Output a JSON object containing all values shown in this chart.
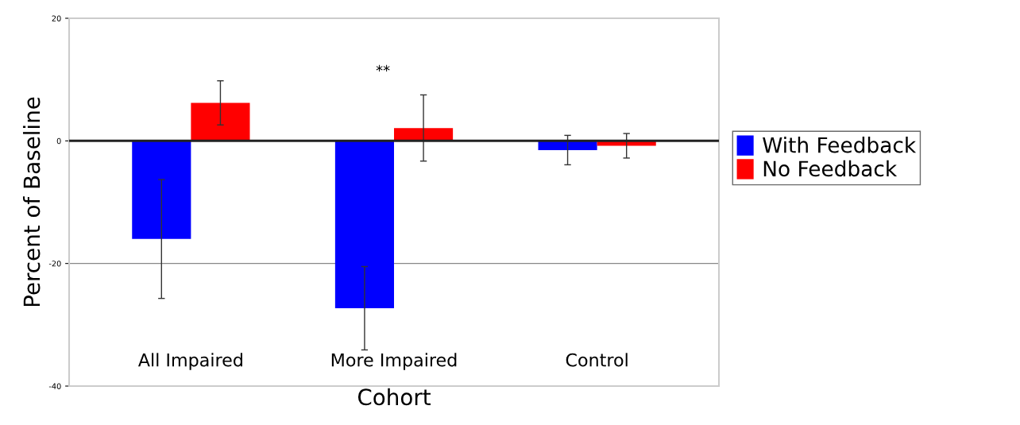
{
  "chart_data": {
    "type": "bar",
    "xlabel": "Cohort",
    "ylabel": "Percent of Baseline",
    "categories": [
      "All Impaired",
      "More Impaired",
      "Control"
    ],
    "series": [
      {
        "name": "With Feedback",
        "color": "#0000ff",
        "values": [
          -16.0,
          -27.3,
          -1.5
        ],
        "errors": [
          9.7,
          6.8,
          2.4
        ]
      },
      {
        "name": "No Feedback",
        "color": "#ff0000",
        "values": [
          6.2,
          2.1,
          -0.8
        ],
        "errors": [
          3.6,
          5.4,
          2.0
        ]
      }
    ],
    "ylim": [
      -40,
      20
    ],
    "yticks": [
      -40,
      -20,
      0,
      20
    ],
    "legend": "right",
    "ref_lines": [
      {
        "axis": "y",
        "value": -20,
        "color": "#888888"
      }
    ],
    "annotations": [
      "**"
    ]
  }
}
